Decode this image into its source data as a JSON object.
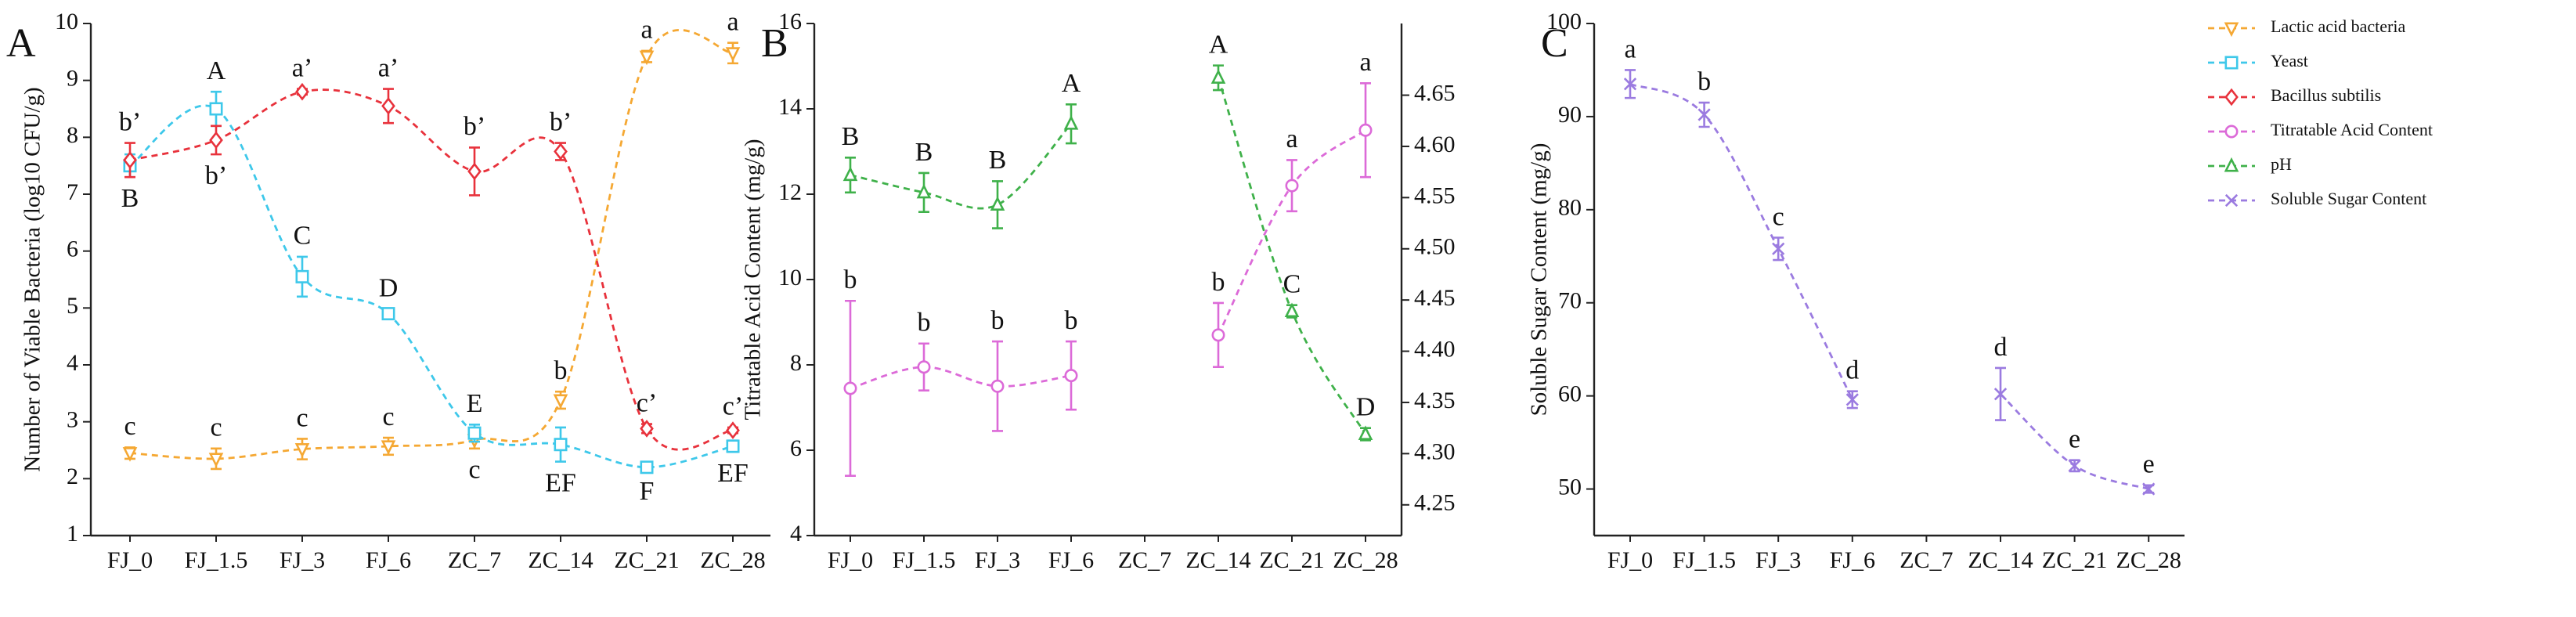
{
  "chart_data": [
    {
      "type": "line",
      "panel_label": "A",
      "y_label": "Number of Viable Bacteria (log10 CFU/g)",
      "categories": [
        "FJ_0",
        "FJ_1.5",
        "FJ_3",
        "FJ_6",
        "ZC_7",
        "ZC_14",
        "ZC_21",
        "ZC_28"
      ],
      "ylim": [
        1,
        10
      ],
      "yticks": [
        1,
        2,
        3,
        4,
        5,
        6,
        7,
        8,
        9,
        10
      ],
      "series": [
        {
          "name": "Lactic acid bacteria",
          "color": "#f5a833",
          "marker": "triangle-down",
          "values": [
            2.45,
            2.35,
            2.52,
            2.57,
            2.68,
            3.38,
            9.42,
            9.48
          ],
          "errors": [
            0.1,
            0.18,
            0.18,
            0.15,
            0.15,
            0.15,
            0.1,
            0.18
          ],
          "letters": [
            "c",
            "c",
            "c",
            "c",
            "c",
            "b",
            "a",
            "a"
          ]
        },
        {
          "name": "Yeast",
          "color": "#3ec8ea",
          "marker": "square",
          "values": [
            7.5,
            8.5,
            5.55,
            4.9,
            2.8,
            2.6,
            2.2,
            2.57
          ],
          "errors": [
            0.2,
            0.3,
            0.35,
            0.08,
            0.15,
            0.3,
            0.05,
            0.1
          ],
          "letters": [
            "B",
            "A",
            "C",
            "D",
            "E",
            "EF",
            "F",
            "EF"
          ]
        },
        {
          "name": "Bacillus subtilis",
          "color": "#e8323c",
          "marker": "diamond",
          "values": [
            7.6,
            7.95,
            8.8,
            8.55,
            7.4,
            7.75,
            2.88,
            2.85
          ],
          "errors": [
            0.3,
            0.25,
            0.05,
            0.3,
            0.42,
            0.15,
            0.08,
            0.05
          ],
          "letters": [
            "b’",
            "b’",
            "a’",
            "a’",
            "b’",
            "b’",
            "c’",
            "c’"
          ]
        }
      ]
    },
    {
      "type": "line",
      "panel_label": "B",
      "y_label": "Titratable Acid Content (mg/g)",
      "categories": [
        "FJ_0",
        "FJ_1.5",
        "FJ_3",
        "FJ_6",
        "ZC_7",
        "ZC_14",
        "ZC_21",
        "ZC_28"
      ],
      "ylim": [
        4,
        16
      ],
      "yticks": [
        4,
        6,
        8,
        10,
        12,
        14,
        16
      ],
      "y2lim": [
        4.22,
        4.72
      ],
      "y2ticks": [
        4.25,
        {
          "value": 4.3,
          "label": "4.30"
        },
        4.35,
        {
          "value": 4.4,
          "label": "4.40"
        },
        4.45,
        {
          "value": 4.5,
          "label": "4.50"
        },
        4.55,
        {
          "value": 4.6,
          "label": "4.60"
        },
        4.65
      ],
      "series": [
        {
          "name": "Titratable Acid Content",
          "color": "#dc6ad8",
          "marker": "circle",
          "values": [
            7.45,
            7.95,
            7.5,
            7.75,
            null,
            8.7,
            12.2,
            13.5
          ],
          "errors": [
            2.05,
            0.55,
            1.05,
            0.8,
            null,
            0.75,
            0.6,
            1.1
          ],
          "letters": [
            "b",
            "b",
            "b",
            "b",
            null,
            "b",
            "a",
            "a"
          ]
        },
        {
          "name": "pH",
          "color": "#3fb14a",
          "marker": "triangle-up",
          "axis": "y2",
          "values": [
            4.572,
            4.555,
            4.543,
            4.622,
            null,
            4.667,
            4.439,
            4.319
          ],
          "errors": [
            0.017,
            0.019,
            0.023,
            0.019,
            null,
            0.012,
            0.006,
            0.006
          ],
          "letters": [
            "B",
            "B",
            "B",
            "A",
            null,
            "A",
            "C",
            "D"
          ]
        }
      ]
    },
    {
      "type": "line",
      "panel_label": "C",
      "y_label": "Soluble Sugar Content (mg/g)",
      "categories": [
        "FJ_0",
        "FJ_1.5",
        "FJ_3",
        "FJ_6",
        "ZC_7",
        "ZC_14",
        "ZC_21",
        "ZC_28"
      ],
      "ylim": [
        45,
        100
      ],
      "yticks": [
        50,
        60,
        70,
        80,
        90,
        100
      ],
      "legend": "right",
      "series": [
        {
          "name": "Soluble Sugar Content",
          "color": "#9b7be0",
          "marker": "x",
          "values": [
            93.5,
            90.2,
            75.8,
            59.6,
            null,
            60.2,
            52.5,
            50.0
          ],
          "errors": [
            1.5,
            1.3,
            1.2,
            0.9,
            null,
            2.8,
            0.6,
            0.4
          ],
          "letters": [
            "a",
            "b",
            "c",
            "d",
            null,
            "d",
            "e",
            "e"
          ]
        }
      ]
    }
  ]
}
